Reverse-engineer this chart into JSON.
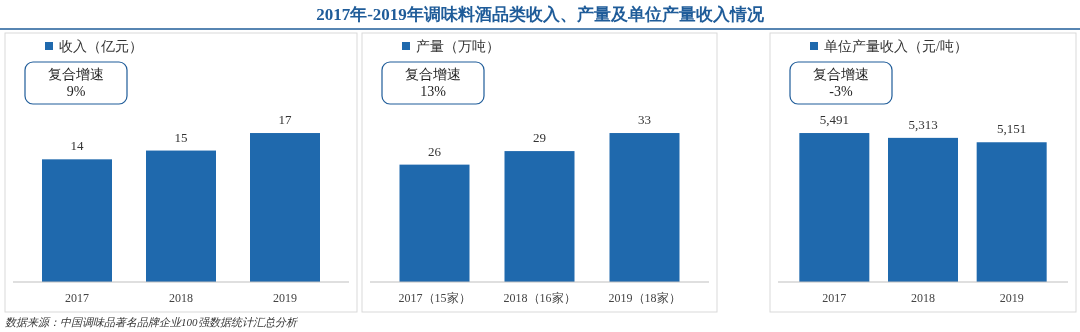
{
  "chart_data": [
    {
      "type": "other",
      "title": "2017年-2019年调味料酒品类收入、产量及单位产量收入情况",
      "annotations": [
        "数据来源：中国调味品著名品牌企业100强数据统计汇总分析"
      ]
    },
    {
      "type": "bar",
      "categories": [
        "2017",
        "2018",
        "2019"
      ],
      "series": [
        {
          "name": "收入（亿元）",
          "color": "#1f69ad",
          "values": [
            14,
            15,
            17
          ]
        }
      ],
      "data_labels": true,
      "legend": "top left",
      "annotations": [
        "复合增速\n9%"
      ]
    },
    {
      "type": "bar",
      "categories": [
        "2017（15家）",
        "2018（16家）",
        "2019（18家）"
      ],
      "series": [
        {
          "name": "产量（万吨）",
          "color": "#1f69ad",
          "values": [
            26,
            29,
            33
          ]
        }
      ],
      "data_labels": true,
      "legend": "top left",
      "annotations": [
        "复合增速\n13%"
      ]
    },
    {
      "type": "bar",
      "categories": [
        "2017",
        "2018",
        "2019"
      ],
      "series": [
        {
          "name": "单位产量收入（元/吨）",
          "color": "#1f69ad",
          "values": [
            5491,
            5313,
            5151
          ],
          "value_labels": [
            "5,491",
            "5,313",
            "5,151"
          ]
        }
      ],
      "legend": "top left",
      "annotations": [
        "复合增速\n-3%"
      ]
    }
  ]
}
